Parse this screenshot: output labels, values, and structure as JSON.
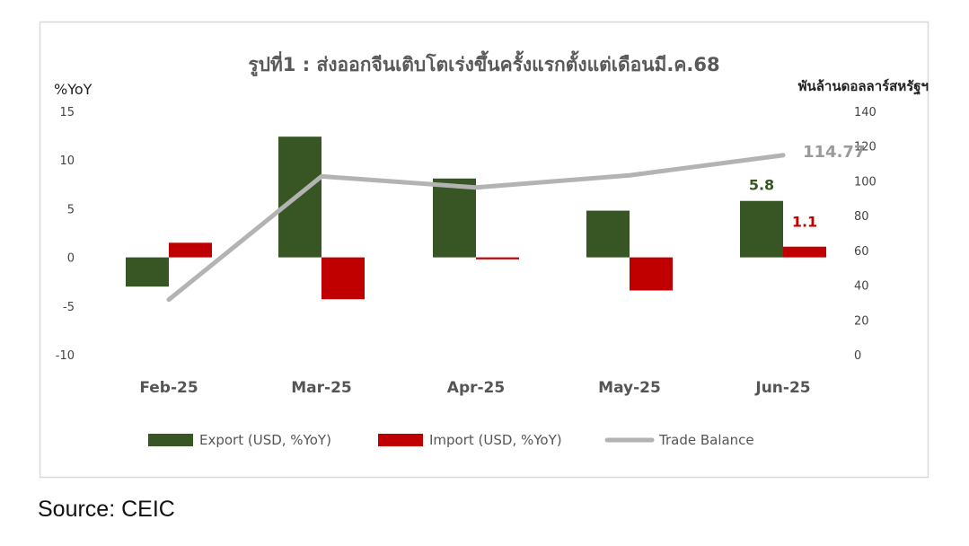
{
  "source_text": "Source:  CEIC",
  "colors": {
    "export": "#375623",
    "import": "#c00000",
    "trade_balance": "#b3b3b3"
  },
  "chart_data": {
    "type": "bar",
    "title": "รูปที่1 : ส่งออกจีนเติบโตเร่งขึ้นครั้งแรกตั้งแต่เดือนมี.ค.68",
    "ylabel": "%YoY",
    "ylabel_right": "พันล้านดอลลาร์สหรัฐฯ",
    "categories": [
      "Feb-25",
      "Mar-25",
      "Apr-25",
      "May-25",
      "Jun-25"
    ],
    "ylim": [
      -10,
      15
    ],
    "yticks": [
      "15",
      "10",
      "5",
      "0",
      "-5",
      "-10"
    ],
    "ylim_right": [
      0,
      140
    ],
    "yticks_right": [
      "140",
      "120",
      "100",
      "80",
      "60",
      "40",
      "20",
      "0"
    ],
    "legend_position": "bottom",
    "grid": false,
    "series": [
      {
        "name": "Export (USD, %YoY)",
        "type": "bar",
        "axis": "left",
        "values": [
          -3.0,
          12.4,
          8.1,
          4.8,
          5.8
        ]
      },
      {
        "name": "Import (USD, %YoY)",
        "type": "bar",
        "axis": "left",
        "values": [
          1.5,
          -4.3,
          -0.2,
          -3.4,
          1.1
        ]
      },
      {
        "name": "Trade Balance",
        "type": "line",
        "axis": "right",
        "values": [
          31.7,
          102.6,
          96.2,
          103.2,
          114.77
        ]
      }
    ],
    "data_labels": [
      {
        "series": 0,
        "index": 4,
        "text": "5.8"
      },
      {
        "series": 1,
        "index": 4,
        "text": "1.1"
      },
      {
        "series": 2,
        "index": 4,
        "text": "114.77"
      }
    ]
  }
}
